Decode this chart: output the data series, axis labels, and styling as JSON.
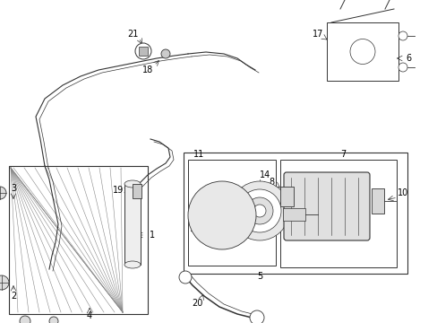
{
  "bg_color": "#ffffff",
  "line_color": "#333333",
  "label_color": "#000000",
  "label_fontsize": 7
}
